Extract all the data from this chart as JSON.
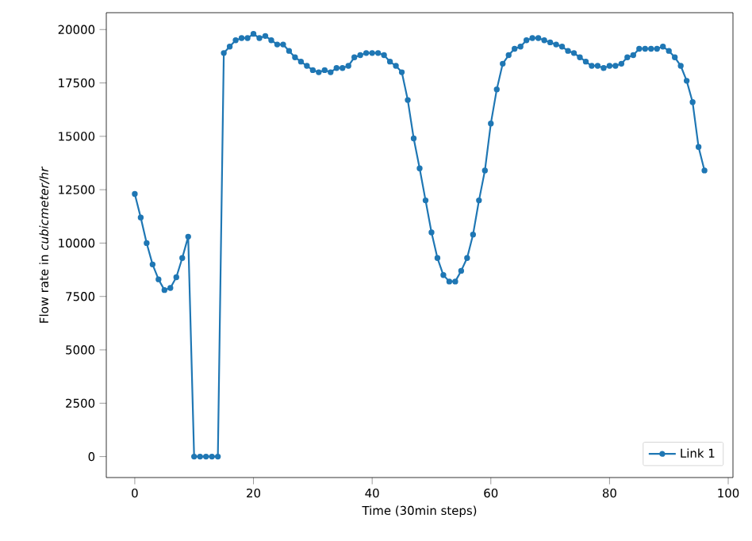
{
  "chart_data": {
    "type": "line",
    "xlabel": "Time (30min steps)",
    "ylabel": "Flow rate in *cubicmeter/hr*",
    "x": [
      0,
      1,
      2,
      3,
      4,
      5,
      6,
      7,
      8,
      9,
      10,
      11,
      12,
      13,
      14,
      15,
      16,
      17,
      18,
      19,
      20,
      21,
      22,
      23,
      24,
      25,
      26,
      27,
      28,
      29,
      30,
      31,
      32,
      33,
      34,
      35,
      36,
      37,
      38,
      39,
      40,
      41,
      42,
      43,
      44,
      45,
      46,
      47,
      48,
      49,
      50,
      51,
      52,
      53,
      54,
      55,
      56,
      57,
      58,
      59,
      60,
      61,
      62,
      63,
      64,
      65,
      66,
      67,
      68,
      69,
      70,
      71,
      72,
      73,
      74,
      75,
      76,
      77,
      78,
      79,
      80,
      81,
      82,
      83,
      84,
      85,
      86,
      87,
      88,
      89,
      90,
      91,
      92,
      93,
      94,
      95,
      96
    ],
    "series": [
      {
        "name": "Link 1",
        "color": "#1f77b4",
        "values": [
          12300,
          11200,
          10000,
          9000,
          8300,
          7800,
          7900,
          8400,
          9300,
          10300,
          0,
          0,
          0,
          0,
          0,
          18900,
          19200,
          19500,
          19600,
          19600,
          19800,
          19600,
          19700,
          19500,
          19300,
          19300,
          19000,
          18700,
          18500,
          18300,
          18100,
          18000,
          18100,
          18000,
          18200,
          18200,
          18300,
          18700,
          18800,
          18900,
          18900,
          18900,
          18800,
          18500,
          18300,
          18000,
          16700,
          14900,
          13500,
          12000,
          10500,
          9300,
          8500,
          8200,
          8200,
          8700,
          9300,
          10400,
          12000,
          13400,
          15600,
          17200,
          18400,
          18800,
          19100,
          19200,
          19500,
          19600,
          19600,
          19500,
          19400,
          19300,
          19200,
          19000,
          18900,
          18700,
          18500,
          18300,
          18300,
          18200,
          18300,
          18300,
          18400,
          18700,
          18800,
          19100,
          19100,
          19100,
          19100,
          19200,
          19000,
          18700,
          18300,
          17600,
          16600,
          14500,
          13400
        ]
      }
    ],
    "xlim": [
      -4.8,
      100.8
    ],
    "ylim": [
      -981,
      20790
    ],
    "xticks": [
      0,
      20,
      40,
      60,
      80,
      100
    ],
    "yticks": [
      0,
      2500,
      5000,
      7500,
      10000,
      12500,
      15000,
      17500,
      20000
    ],
    "legend": "bottom right",
    "marker": "circle",
    "line_style": "solid",
    "grid": false
  }
}
